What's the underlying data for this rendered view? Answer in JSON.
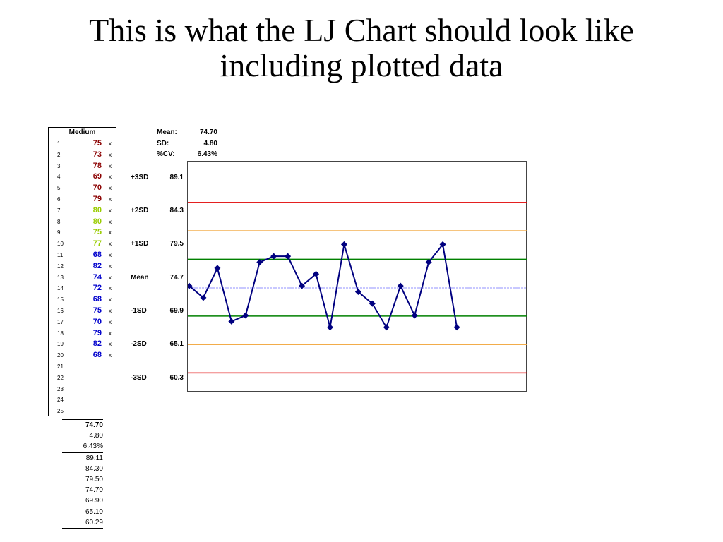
{
  "slide": {
    "title_line1": "This is what the LJ Chart should look like",
    "title_line2": "including plotted data"
  },
  "table": {
    "header": "Medium",
    "rows": [
      {
        "n": "1",
        "v": "75",
        "x": "x",
        "color": "#8B0000"
      },
      {
        "n": "2",
        "v": "73",
        "x": "x",
        "color": "#8B0000"
      },
      {
        "n": "3",
        "v": "78",
        "x": "x",
        "color": "#8B0000"
      },
      {
        "n": "4",
        "v": "69",
        "x": "x",
        "color": "#8B0000"
      },
      {
        "n": "5",
        "v": "70",
        "x": "x",
        "color": "#8B0000"
      },
      {
        "n": "6",
        "v": "79",
        "x": "x",
        "color": "#8B0000"
      },
      {
        "n": "7",
        "v": "80",
        "x": "x",
        "color": "#99CC00"
      },
      {
        "n": "8",
        "v": "80",
        "x": "x",
        "color": "#99CC00"
      },
      {
        "n": "9",
        "v": "75",
        "x": "x",
        "color": "#99CC00"
      },
      {
        "n": "10",
        "v": "77",
        "x": "x",
        "color": "#99CC00"
      },
      {
        "n": "11",
        "v": "68",
        "x": "x",
        "color": "#0000CC"
      },
      {
        "n": "12",
        "v": "82",
        "x": "x",
        "color": "#0000CC"
      },
      {
        "n": "13",
        "v": "74",
        "x": "x",
        "color": "#0000CC"
      },
      {
        "n": "14",
        "v": "72",
        "x": "x",
        "color": "#0000CC"
      },
      {
        "n": "15",
        "v": "68",
        "x": "x",
        "color": "#0000CC"
      },
      {
        "n": "16",
        "v": "75",
        "x": "x",
        "color": "#0000CC"
      },
      {
        "n": "17",
        "v": "70",
        "x": "x",
        "color": "#0000CC"
      },
      {
        "n": "18",
        "v": "79",
        "x": "x",
        "color": "#0000CC"
      },
      {
        "n": "19",
        "v": "82",
        "x": "x",
        "color": "#0000CC"
      },
      {
        "n": "20",
        "v": "68",
        "x": "x",
        "color": "#0000CC"
      },
      {
        "n": "21",
        "v": "",
        "x": "",
        "color": "#000000"
      },
      {
        "n": "22",
        "v": "",
        "x": "",
        "color": "#000000"
      },
      {
        "n": "23",
        "v": "",
        "x": "",
        "color": "#000000"
      },
      {
        "n": "24",
        "v": "",
        "x": "",
        "color": "#000000"
      },
      {
        "n": "25",
        "v": "",
        "x": "",
        "color": "#000000"
      }
    ],
    "stats": [
      "74.70",
      "4.80",
      "6.43%",
      "89.11",
      "84.30",
      "79.50",
      "74.70",
      "69.90",
      "65.10",
      "60.29"
    ]
  },
  "summary": {
    "mean_label": "Mean:",
    "mean_value": "74.70",
    "sd_label": "SD:",
    "sd_value": "4.80",
    "cv_label": "%CV:",
    "cv_value": "6.43%"
  },
  "sd_labels": [
    {
      "label": "+3SD",
      "value": "89.1"
    },
    {
      "label": "+2SD",
      "value": "84.3"
    },
    {
      "label": "+1SD",
      "value": "79.5"
    },
    {
      "label": "Mean",
      "value": "74.7"
    },
    {
      "label": "-1SD",
      "value": "69.9"
    },
    {
      "label": "-2SD",
      "value": "65.1"
    },
    {
      "label": "-3SD",
      "value": "60.3"
    }
  ],
  "chart_data": {
    "type": "line",
    "title": "",
    "xlabel": "",
    "ylabel": "",
    "ylim": [
      57,
      96
    ],
    "x": [
      1,
      2,
      3,
      4,
      5,
      6,
      7,
      8,
      9,
      10,
      11,
      12,
      13,
      14,
      15,
      16,
      17,
      18,
      19,
      20
    ],
    "series": [
      {
        "values": [
          75,
          73,
          78,
          69,
          70,
          79,
          80,
          80,
          75,
          77,
          68,
          82,
          74,
          72,
          68,
          75,
          70,
          79,
          82,
          68
        ],
        "color": "#000080"
      }
    ],
    "control_lines": [
      {
        "value": 89.1,
        "color": "#E00000"
      },
      {
        "value": 84.3,
        "color": "#F0A030"
      },
      {
        "value": 79.5,
        "color": "#008000"
      },
      {
        "value": 74.7,
        "color": "#C8C8FF"
      },
      {
        "value": 69.9,
        "color": "#008000"
      },
      {
        "value": 65.1,
        "color": "#F0A030"
      },
      {
        "value": 60.3,
        "color": "#E00000"
      }
    ],
    "grid": false
  }
}
